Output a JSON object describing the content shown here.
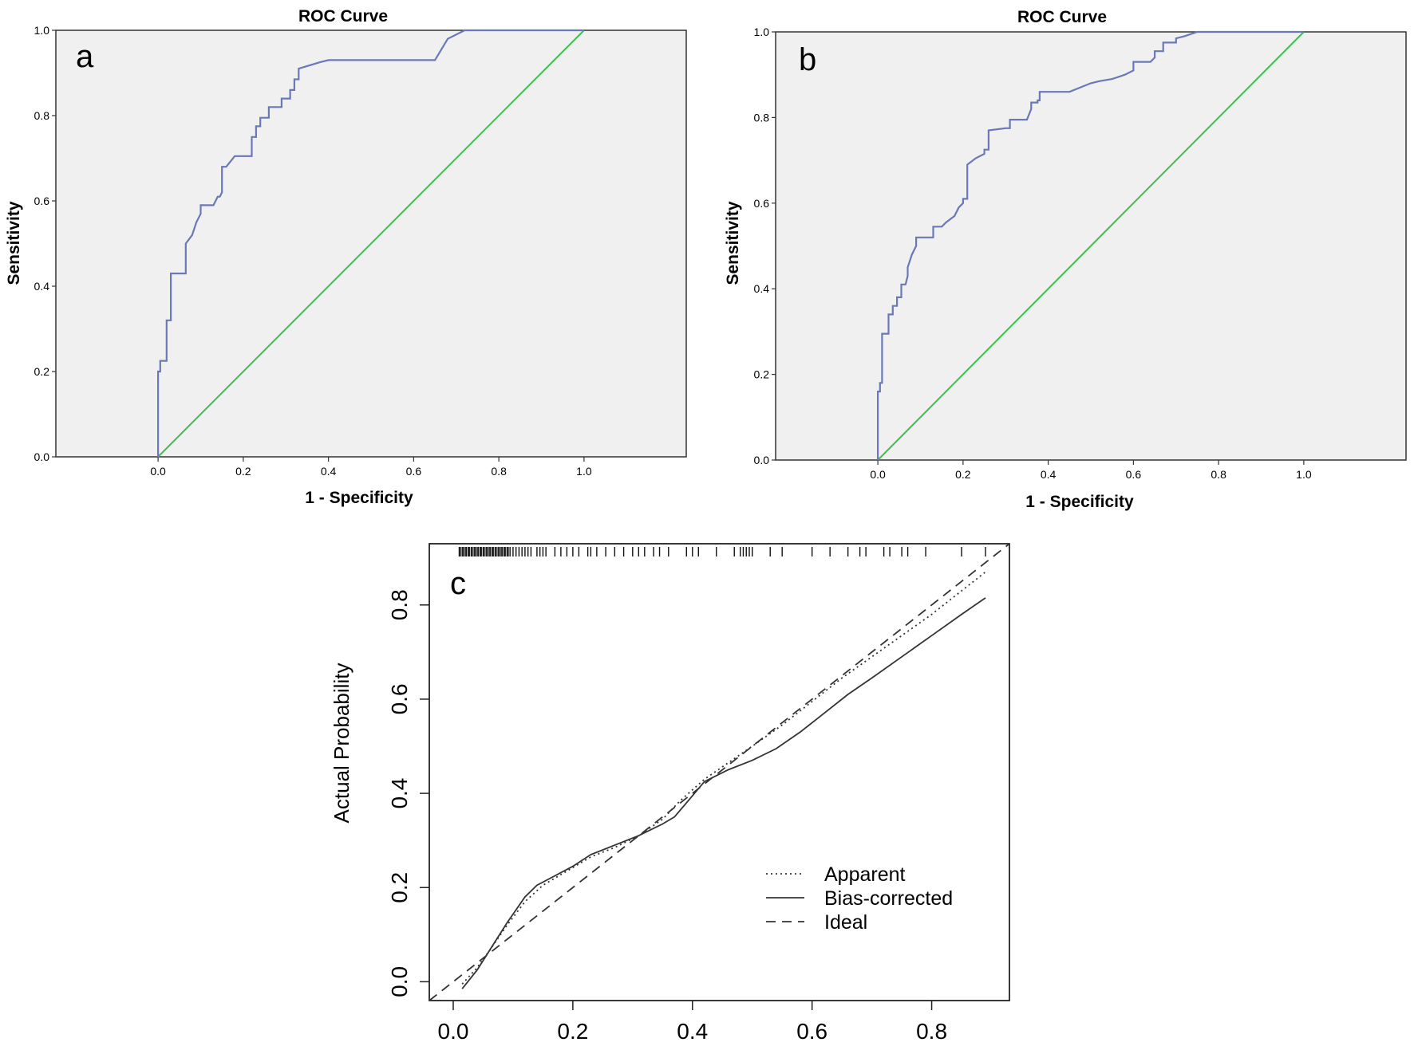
{
  "chart_data": [
    {
      "type": "line",
      "panel_label": "a",
      "title": "ROC Curve",
      "xlabel": "1 - Specificity",
      "ylabel": "Sensitivity",
      "xlim": [
        -0.24,
        1.24
      ],
      "ylim": [
        0,
        1
      ],
      "xticks": [
        0.0,
        0.2,
        0.4,
        0.6,
        0.8,
        1.0
      ],
      "xtick_labels": [
        "0.0",
        "0.2",
        "0.4",
        "0.6",
        "0.8",
        "1.0"
      ],
      "yticks": [
        0.0,
        0.2,
        0.4,
        0.6,
        0.8,
        1.0
      ],
      "ytick_labels": [
        "0.0",
        "0.2",
        "0.4",
        "0.6",
        "0.8",
        "1.0"
      ],
      "colors": {
        "curve": "#6a78b8",
        "reference": "#3fbf4f",
        "background": "#f0f0f0"
      },
      "series": [
        {
          "name": "ROC",
          "x": [
            0,
            0,
            0.005,
            0.005,
            0.02,
            0.02,
            0.03,
            0.03,
            0.065,
            0.065,
            0.08,
            0.09,
            0.1,
            0.1,
            0.13,
            0.14,
            0.145,
            0.15,
            0.15,
            0.16,
            0.18,
            0.18,
            0.22,
            0.22,
            0.23,
            0.23,
            0.24,
            0.24,
            0.26,
            0.26,
            0.29,
            0.29,
            0.31,
            0.31,
            0.32,
            0.32,
            0.33,
            0.33,
            0.38,
            0.4,
            0.65,
            0.68,
            0.72,
            0.72,
            1.0
          ],
          "y": [
            0,
            0.2,
            0.2,
            0.225,
            0.225,
            0.32,
            0.32,
            0.43,
            0.43,
            0.5,
            0.52,
            0.55,
            0.57,
            0.59,
            0.59,
            0.61,
            0.61,
            0.62,
            0.68,
            0.68,
            0.705,
            0.705,
            0.705,
            0.75,
            0.75,
            0.775,
            0.775,
            0.795,
            0.795,
            0.82,
            0.82,
            0.84,
            0.84,
            0.86,
            0.86,
            0.885,
            0.885,
            0.91,
            0.925,
            0.93,
            0.93,
            0.98,
            1.0,
            1.0,
            1.0
          ]
        },
        {
          "name": "Reference",
          "x": [
            0,
            1
          ],
          "y": [
            0,
            1
          ]
        }
      ]
    },
    {
      "type": "line",
      "panel_label": "b",
      "title": "ROC Curve",
      "xlabel": "1 - Specificity",
      "ylabel": "Sensitivity",
      "xlim": [
        -0.24,
        1.24
      ],
      "ylim": [
        0,
        1
      ],
      "xticks": [
        0.0,
        0.2,
        0.4,
        0.6,
        0.8,
        1.0
      ],
      "xtick_labels": [
        "0.0",
        "0.2",
        "0.4",
        "0.6",
        "0.8",
        "1.0"
      ],
      "yticks": [
        0.0,
        0.2,
        0.4,
        0.6,
        0.8,
        1.0
      ],
      "ytick_labels": [
        "0.0",
        "0.2",
        "0.4",
        "0.6",
        "0.8",
        "1.0"
      ],
      "colors": {
        "curve": "#6a78b8",
        "reference": "#3fbf4f",
        "background": "#f0f0f0"
      },
      "series": [
        {
          "name": "ROC",
          "x": [
            0,
            0,
            0.005,
            0.005,
            0.01,
            0.01,
            0.025,
            0.025,
            0.035,
            0.035,
            0.045,
            0.045,
            0.055,
            0.055,
            0.065,
            0.07,
            0.07,
            0.08,
            0.09,
            0.09,
            0.13,
            0.13,
            0.15,
            0.16,
            0.18,
            0.19,
            0.2,
            0.2,
            0.21,
            0.21,
            0.23,
            0.25,
            0.25,
            0.26,
            0.26,
            0.3,
            0.31,
            0.31,
            0.35,
            0.36,
            0.36,
            0.375,
            0.375,
            0.38,
            0.38,
            0.45,
            0.5,
            0.52,
            0.55,
            0.58,
            0.6,
            0.6,
            0.64,
            0.65,
            0.65,
            0.67,
            0.67,
            0.7,
            0.7,
            0.72,
            0.75,
            1.0
          ],
          "y": [
            0,
            0.16,
            0.16,
            0.18,
            0.18,
            0.295,
            0.295,
            0.34,
            0.34,
            0.36,
            0.36,
            0.38,
            0.38,
            0.41,
            0.41,
            0.43,
            0.45,
            0.48,
            0.5,
            0.52,
            0.52,
            0.545,
            0.545,
            0.555,
            0.57,
            0.59,
            0.6,
            0.61,
            0.61,
            0.69,
            0.705,
            0.715,
            0.725,
            0.725,
            0.77,
            0.775,
            0.775,
            0.795,
            0.795,
            0.82,
            0.835,
            0.835,
            0.84,
            0.84,
            0.86,
            0.86,
            0.88,
            0.885,
            0.89,
            0.9,
            0.91,
            0.93,
            0.93,
            0.94,
            0.955,
            0.955,
            0.975,
            0.975,
            0.985,
            0.99,
            1.0,
            1.0
          ]
        },
        {
          "name": "Reference",
          "x": [
            0,
            1
          ],
          "y": [
            0,
            1
          ]
        }
      ]
    },
    {
      "type": "line",
      "panel_label": "c",
      "title": "",
      "xlabel": "",
      "ylabel": "Actual Probability",
      "xlim": [
        -0.04,
        0.93
      ],
      "ylim": [
        -0.04,
        0.93
      ],
      "xticks": [
        0.0,
        0.2,
        0.4,
        0.6,
        0.8
      ],
      "xtick_labels": [
        "0.0",
        "0.2",
        "0.4",
        "0.6",
        "0.8"
      ],
      "yticks": [
        0.0,
        0.2,
        0.4,
        0.6,
        0.8
      ],
      "ytick_labels": [
        "0.0",
        "0.2",
        "0.4",
        "0.6",
        "0.8"
      ],
      "legend": {
        "position": "bottom-right",
        "entries": [
          "Apparent",
          "Bias-corrected",
          "Ideal"
        ]
      },
      "rug_x": [
        0.01,
        0.012,
        0.015,
        0.017,
        0.02,
        0.022,
        0.025,
        0.027,
        0.03,
        0.032,
        0.035,
        0.037,
        0.04,
        0.042,
        0.045,
        0.047,
        0.05,
        0.052,
        0.055,
        0.057,
        0.06,
        0.062,
        0.065,
        0.067,
        0.07,
        0.072,
        0.075,
        0.077,
        0.08,
        0.082,
        0.085,
        0.087,
        0.09,
        0.092,
        0.095,
        0.1,
        0.105,
        0.11,
        0.115,
        0.12,
        0.125,
        0.13,
        0.14,
        0.145,
        0.15,
        0.155,
        0.17,
        0.18,
        0.19,
        0.2,
        0.21,
        0.225,
        0.23,
        0.24,
        0.255,
        0.27,
        0.285,
        0.3,
        0.31,
        0.32,
        0.335,
        0.345,
        0.36,
        0.39,
        0.4,
        0.41,
        0.44,
        0.47,
        0.48,
        0.485,
        0.49,
        0.495,
        0.5,
        0.53,
        0.55,
        0.6,
        0.63,
        0.66,
        0.68,
        0.69,
        0.72,
        0.73,
        0.75,
        0.76,
        0.79,
        0.85,
        0.89
      ],
      "series": [
        {
          "name": "Apparent",
          "style": "dotted",
          "x": [
            0.015,
            0.04,
            0.06,
            0.09,
            0.12,
            0.15,
            0.19,
            0.23,
            0.27,
            0.31,
            0.35,
            0.38,
            0.42,
            0.46,
            0.5,
            0.55,
            0.6,
            0.65,
            0.7,
            0.75,
            0.8,
            0.85,
            0.89
          ],
          "y": [
            -0.005,
            0.03,
            0.065,
            0.12,
            0.17,
            0.205,
            0.235,
            0.265,
            0.285,
            0.31,
            0.345,
            0.385,
            0.43,
            0.465,
            0.5,
            0.545,
            0.595,
            0.645,
            0.69,
            0.735,
            0.78,
            0.83,
            0.87
          ]
        },
        {
          "name": "Bias-corrected",
          "style": "solid",
          "x": [
            0.015,
            0.04,
            0.06,
            0.09,
            0.12,
            0.14,
            0.17,
            0.2,
            0.23,
            0.27,
            0.31,
            0.35,
            0.37,
            0.39,
            0.42,
            0.46,
            0.5,
            0.54,
            0.58,
            0.62,
            0.66,
            0.7,
            0.75,
            0.8,
            0.85,
            0.89
          ],
          "y": [
            -0.015,
            0.025,
            0.065,
            0.125,
            0.18,
            0.205,
            0.225,
            0.245,
            0.27,
            0.29,
            0.31,
            0.335,
            0.35,
            0.38,
            0.425,
            0.45,
            0.47,
            0.495,
            0.53,
            0.57,
            0.61,
            0.645,
            0.69,
            0.735,
            0.78,
            0.815
          ]
        },
        {
          "name": "Ideal",
          "style": "dashed",
          "x": [
            -0.04,
            0.93
          ],
          "y": [
            -0.04,
            0.93
          ]
        }
      ]
    }
  ]
}
